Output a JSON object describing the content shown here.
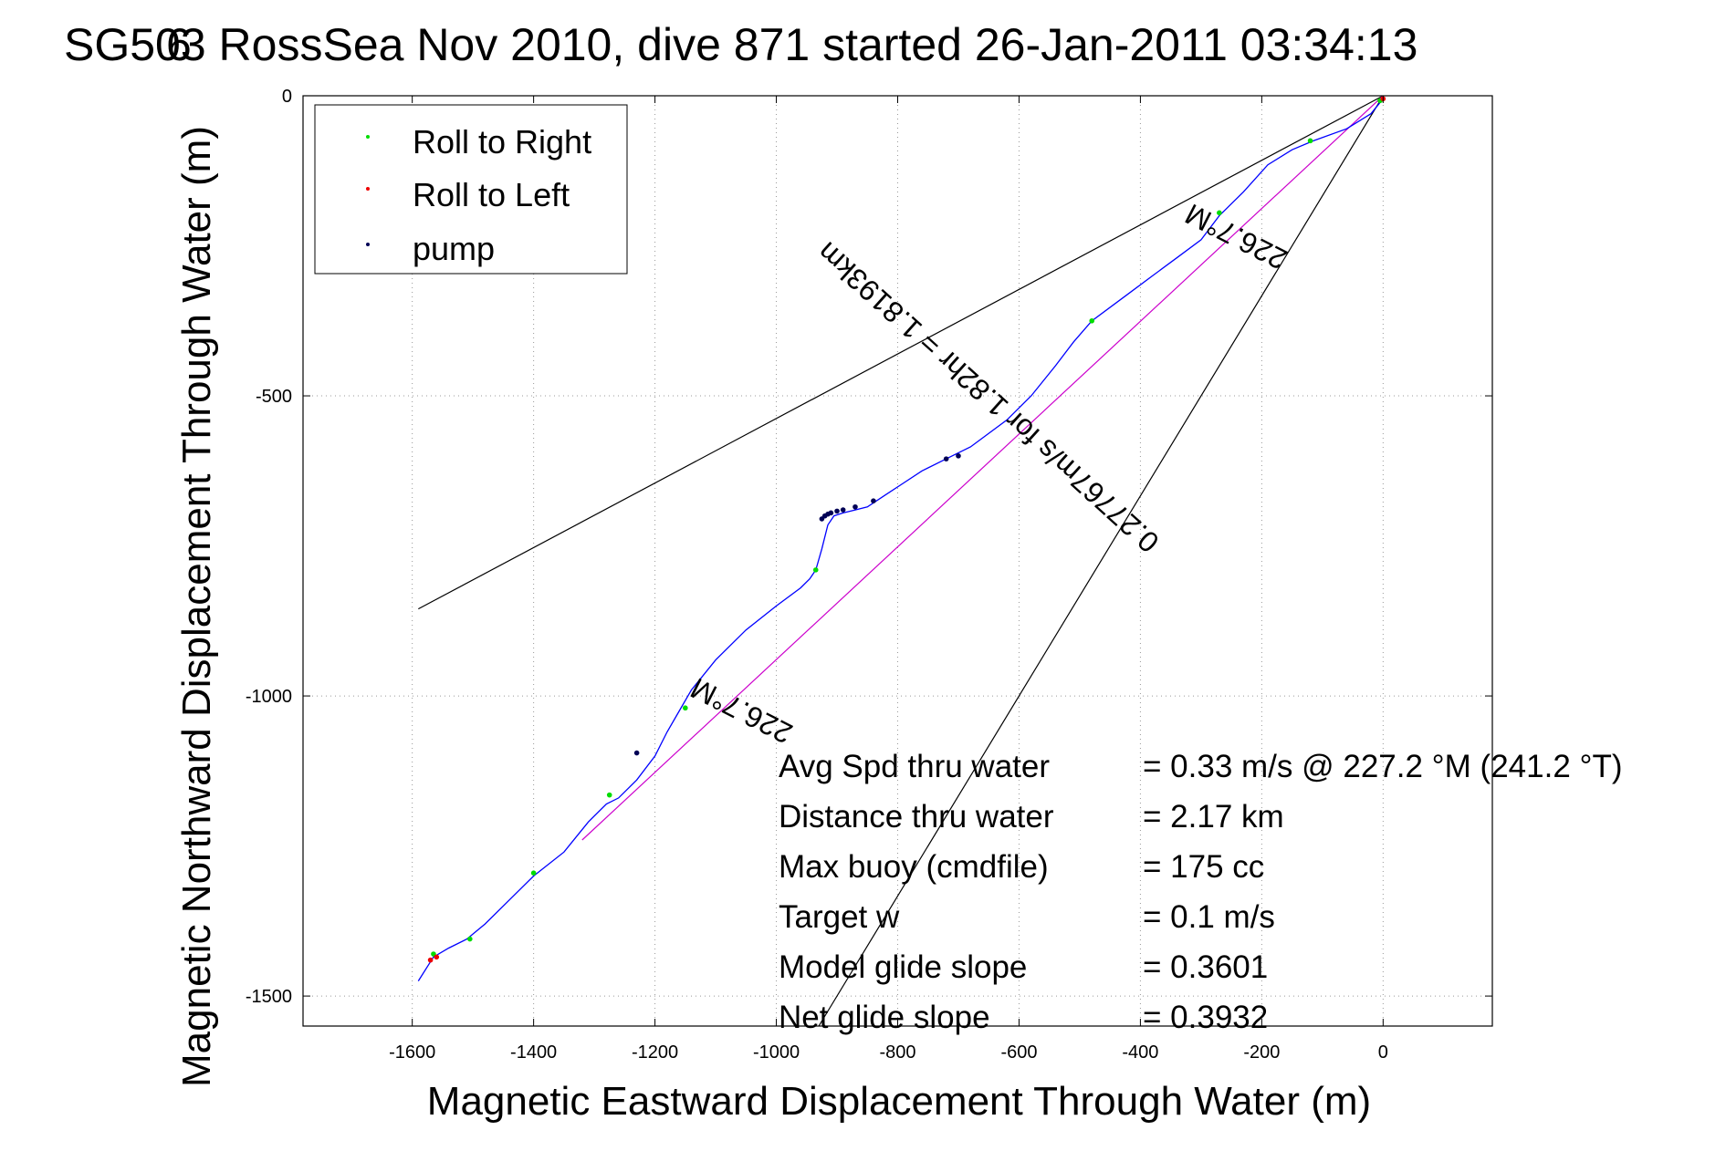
{
  "chart_data": {
    "type": "line",
    "title": "SG503 RossSea Nov 2010, dive 871 started 26-Jan-2011 03:34:13",
    "title_overlap_glyph": "6",
    "xlabel": "Magnetic Eastward Displacement Through Water (m)",
    "ylabel": "Magnetic Northward Displacement Through Water (m)",
    "xlim": [
      -1780,
      180
    ],
    "ylim": [
      -1550,
      0
    ],
    "xticks": [
      -1600,
      -1400,
      -1200,
      -1000,
      -800,
      -600,
      -400,
      -200,
      0
    ],
    "xtick_labels": [
      "-1600",
      "-1400",
      "-1200",
      "-1000",
      "-800",
      "-600",
      "-400",
      "-200",
      "0"
    ],
    "yticks": [
      0,
      -500,
      -1000,
      -1500
    ],
    "ytick_labels": [
      "0",
      "-500",
      "-1000",
      "-1500"
    ],
    "grid": true,
    "legend_position": "top-left",
    "series": [
      {
        "name": "Roll to Right",
        "color": "#00dd00",
        "marker": "dot"
      },
      {
        "name": "Roll to Left",
        "color": "#ee0000",
        "marker": "dot"
      },
      {
        "name": "pump",
        "color": "#000055",
        "marker": "dot"
      }
    ],
    "track": {
      "color": "#0000ff",
      "x": [
        0,
        -20,
        -60,
        -115,
        -150,
        -190,
        -230,
        -270,
        -300,
        -340,
        -380,
        -420,
        -480,
        -510,
        -540,
        -580,
        -620,
        -680,
        -720,
        -760,
        -790,
        -820,
        -850,
        -870,
        -890,
        -905,
        -915,
        -925,
        -935,
        -945,
        -960,
        -1000,
        -1050,
        -1100,
        -1140,
        -1160,
        -1180,
        -1200,
        -1230,
        -1260,
        -1280,
        -1310,
        -1350,
        -1400,
        -1440,
        -1480,
        -1510,
        -1540,
        -1565,
        -1590
      ],
      "y": [
        -5,
        -30,
        -55,
        -75,
        -90,
        -115,
        -160,
        -200,
        -240,
        -270,
        -300,
        -330,
        -375,
        -410,
        -450,
        -500,
        -540,
        -585,
        -605,
        -625,
        -645,
        -665,
        -685,
        -690,
        -695,
        -700,
        -715,
        -755,
        -790,
        -805,
        -820,
        -850,
        -890,
        -940,
        -990,
        -1025,
        -1060,
        -1100,
        -1140,
        -1170,
        -1180,
        -1210,
        -1260,
        -1300,
        -1340,
        -1380,
        -1405,
        -1420,
        -1435,
        -1475
      ]
    },
    "pump_points": {
      "x": [
        -700,
        -720,
        -840,
        -870,
        -890,
        -900,
        -910,
        -915,
        -920,
        -925,
        -1230
      ],
      "y": [
        -600,
        -605,
        -675,
        -685,
        -690,
        -692,
        -695,
        -697,
        -700,
        -705,
        -1095
      ]
    },
    "roll_right_points": {
      "x": [
        -5,
        -120,
        -270,
        -480,
        -935,
        -1150,
        -1275,
        -1400,
        -1505,
        -1565
      ],
      "y": [
        -8,
        -75,
        -195,
        -375,
        -790,
        -1020,
        -1165,
        -1295,
        -1405,
        -1430
      ]
    },
    "roll_left_points": {
      "x": [
        0,
        -1560,
        -1570
      ],
      "y": [
        -5,
        -1435,
        -1440
      ]
    },
    "reference_lines": [
      {
        "color": "#000000",
        "x": [
          0,
          -1590
        ],
        "y": [
          0,
          -855
        ]
      },
      {
        "color": "#000000",
        "x": [
          0,
          -930
        ],
        "y": [
          0,
          -1550
        ]
      },
      {
        "color": "#cc00cc",
        "x": [
          0,
          -1320
        ],
        "y": [
          0,
          -1240
        ]
      }
    ],
    "annotations": [
      {
        "text": "226.7°M",
        "x": -235,
        "y": -220,
        "rotation": 207
      },
      {
        "text": "0.27767m/s for 1.82hr = 1.8193km",
        "x": -640,
        "y": -490,
        "rotation": 222
      },
      {
        "text": "226.7°M",
        "x": -1050,
        "y": -1010,
        "rotation": 207
      }
    ],
    "stats": {
      "labels": [
        "Avg Spd thru water",
        "Distance thru water",
        "Max buoy (cmdfile)",
        "Target w",
        "Model glide slope",
        "Net glide slope"
      ],
      "values": [
        "=  0.33 m/s @ 227.2 °M (241.2 °T)",
        "=  2.17 km",
        "= 175 cc",
        "= 0.1 m/s",
        "= 0.3601",
        "= 0.3932"
      ]
    }
  }
}
